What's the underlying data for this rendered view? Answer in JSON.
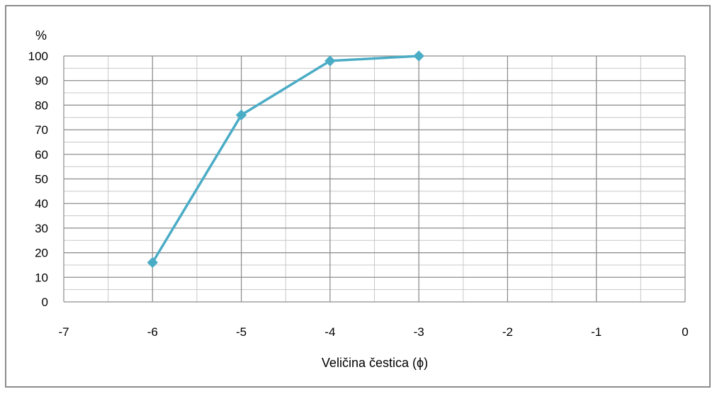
{
  "chart_data": {
    "type": "line",
    "title": "",
    "xlabel": "Veličina čestica (ϕ)",
    "ylabel": "%",
    "xlim": [
      -7,
      0
    ],
    "ylim": [
      0,
      100
    ],
    "x_ticks": [
      "-7",
      "-6",
      "-5",
      "-4",
      "-3",
      "-2",
      "-1",
      "0"
    ],
    "y_ticks": [
      "0",
      "10",
      "20",
      "30",
      "40",
      "50",
      "60",
      "70",
      "80",
      "90",
      "100"
    ],
    "grid": true,
    "legend": "none",
    "series": [
      {
        "x": [
          -6,
          -5,
          -4,
          -3
        ],
        "y": [
          16,
          76,
          98,
          100
        ],
        "color": "#4bacc6"
      }
    ]
  }
}
